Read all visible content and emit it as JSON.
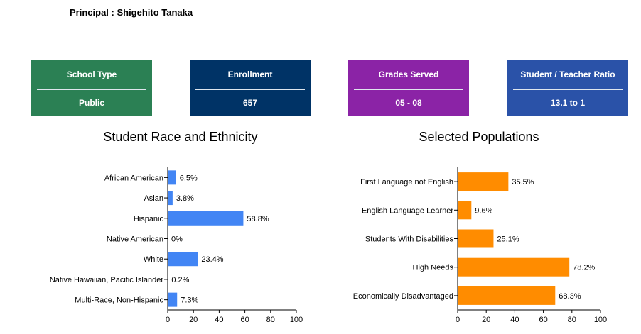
{
  "principal": "Principal : Shigehito Tanaka",
  "cards": [
    {
      "title": "School Type",
      "value": "Public",
      "color": "#2b8054"
    },
    {
      "title": "Enrollment",
      "value": "657",
      "color": "#003366"
    },
    {
      "title": "Grades Served",
      "value": "05 - 08",
      "color": "#8b23a6"
    },
    {
      "title": "Student / Teacher Ratio",
      "value": "13.1 to 1",
      "color": "#2a52a8"
    }
  ],
  "chart_data": [
    {
      "type": "bar",
      "orientation": "horizontal",
      "title": "Student Race and Ethnicity",
      "categories": [
        "African American",
        "Asian",
        "Hispanic",
        "Native American",
        "White",
        "Native Hawaiian, Pacific Islander",
        "Multi-Race, Non-Hispanic"
      ],
      "values": [
        6.5,
        3.8,
        58.8,
        0,
        23.4,
        0.2,
        7.3
      ],
      "labels": [
        "6.5%",
        "3.8%",
        "58.8%",
        "0%",
        "23.4%",
        "0.2%",
        "7.3%"
      ],
      "xlim": [
        0,
        100
      ],
      "ticks": [
        "0",
        "20",
        "40",
        "60",
        "80",
        "100"
      ],
      "color": "#4285f4",
      "grid": false
    },
    {
      "type": "bar",
      "orientation": "horizontal",
      "title": "Selected Populations",
      "categories": [
        "First Language not English",
        "English Language Learner",
        "Students With Disabilities",
        "High Needs",
        "Economically Disadvantaged"
      ],
      "values": [
        35.5,
        9.6,
        25.1,
        78.2,
        68.3
      ],
      "labels": [
        "35.5%",
        "9.6%",
        "25.1%",
        "78.2%",
        "68.3%"
      ],
      "xlim": [
        0,
        100
      ],
      "ticks": [
        "0",
        "20",
        "40",
        "60",
        "80",
        "100"
      ],
      "color": "#ff8c00",
      "grid": false
    }
  ]
}
